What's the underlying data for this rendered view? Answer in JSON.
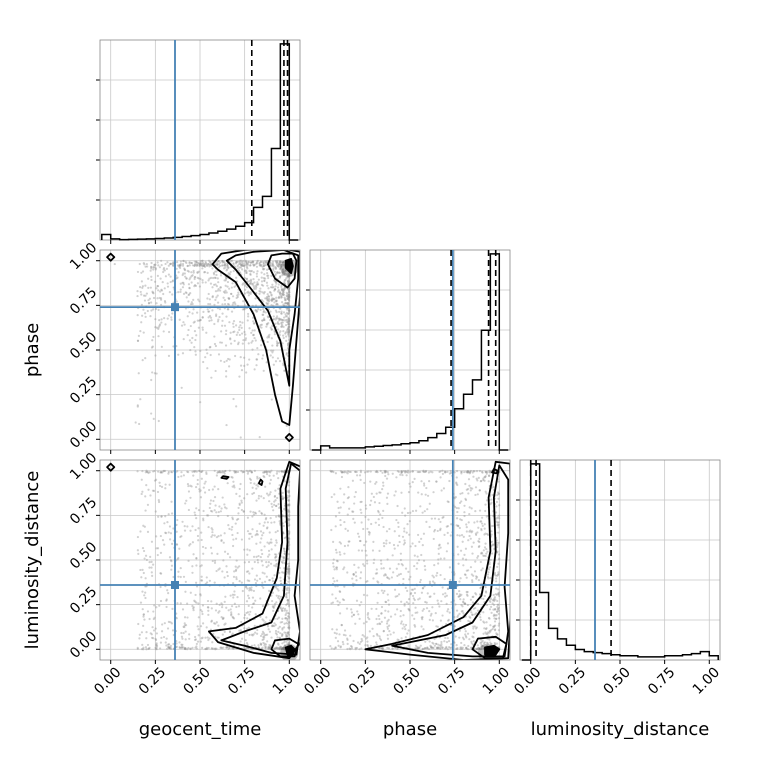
{
  "chart_data": {
    "type": "corner",
    "parameters": [
      "geocent_time",
      "phase",
      "luminosity_distance"
    ],
    "axis_labels": {
      "geocent_time": "geocent_time",
      "phase": "phase",
      "luminosity_distance": "luminosity_distance"
    },
    "ticks": [
      0.0,
      0.25,
      0.5,
      0.75,
      1.0
    ],
    "tick_labels": [
      "0.00",
      "0.25",
      "0.50",
      "0.75",
      "1.00"
    ],
    "ranges": {
      "geocent_time": [
        -0.06,
        1.06
      ],
      "phase": [
        -0.06,
        1.06
      ],
      "luminosity_distance": [
        -0.06,
        1.06
      ]
    },
    "truths": {
      "geocent_time": 0.36,
      "phase": 0.74,
      "luminosity_distance": 0.36
    },
    "colors": {
      "truth": "#4682b4",
      "hist": "#000000",
      "points": "#9a9a9a",
      "grid": "#c8c8c8"
    },
    "grid": true,
    "histograms": {
      "geocent_time": {
        "edges": [
          -0.05,
          0.0,
          0.05,
          0.1,
          0.15,
          0.2,
          0.25,
          0.3,
          0.35,
          0.4,
          0.45,
          0.5,
          0.55,
          0.6,
          0.65,
          0.7,
          0.75,
          0.8,
          0.85,
          0.9,
          0.95,
          1.0,
          1.05
        ],
        "counts": [
          0.025,
          0.005,
          0.002,
          0.003,
          0.004,
          0.005,
          0.007,
          0.009,
          0.012,
          0.016,
          0.02,
          0.025,
          0.032,
          0.04,
          0.05,
          0.063,
          0.08,
          0.15,
          0.2,
          0.42,
          0.9,
          0.0
        ],
        "quantiles": [
          0.79,
          0.97,
          0.99
        ]
      },
      "phase": {
        "edges": [
          -0.05,
          0.0,
          0.05,
          0.1,
          0.15,
          0.2,
          0.25,
          0.3,
          0.35,
          0.4,
          0.45,
          0.5,
          0.55,
          0.6,
          0.65,
          0.7,
          0.75,
          0.8,
          0.85,
          0.9,
          0.95,
          1.0,
          1.05
        ],
        "counts": [
          0.0,
          0.02,
          0.01,
          0.01,
          0.01,
          0.01,
          0.015,
          0.018,
          0.022,
          0.025,
          0.03,
          0.035,
          0.045,
          0.06,
          0.08,
          0.11,
          0.2,
          0.27,
          0.34,
          0.58,
          0.95,
          0.0
        ],
        "quantiles": [
          0.73,
          0.94,
          0.98
        ]
      },
      "luminosity_distance": {
        "edges": [
          -0.05,
          0.0,
          0.05,
          0.1,
          0.15,
          0.2,
          0.25,
          0.3,
          0.35,
          0.4,
          0.45,
          0.5,
          0.55,
          0.6,
          0.65,
          0.7,
          0.75,
          0.8,
          0.85,
          0.9,
          0.95,
          1.0,
          1.05
        ],
        "counts": [
          0.0,
          0.93,
          0.32,
          0.15,
          0.1,
          0.07,
          0.05,
          0.04,
          0.035,
          0.03,
          0.025,
          0.02,
          0.02,
          0.015,
          0.015,
          0.015,
          0.02,
          0.02,
          0.025,
          0.03,
          0.04,
          0.02
        ],
        "quantiles": [
          0.0,
          0.03,
          0.45
        ]
      }
    },
    "panels": [
      {
        "x": "geocent_time",
        "y": "phase",
        "contours": [
          [
            [
              0.99,
              0.95
            ],
            [
              1.01,
              0.93
            ],
            [
              1.02,
              0.97
            ],
            [
              1.01,
              1.01
            ],
            [
              0.98,
              1.0
            ],
            [
              0.98,
              0.96
            ]
          ],
          [
            [
              0.88,
              0.98
            ],
            [
              0.92,
              0.9
            ],
            [
              0.99,
              0.85
            ],
            [
              1.03,
              0.9
            ],
            [
              1.04,
              1.0
            ],
            [
              1.02,
              1.04
            ],
            [
              0.96,
              1.04
            ],
            [
              0.9,
              1.03
            ]
          ],
          [
            [
              0.65,
              1.0
            ],
            [
              0.7,
              0.95
            ],
            [
              0.78,
              0.85
            ],
            [
              0.88,
              0.72
            ],
            [
              0.95,
              0.55
            ],
            [
              1.0,
              0.3
            ],
            [
              1.0,
              0.5
            ],
            [
              1.03,
              0.7
            ],
            [
              1.05,
              0.9
            ],
            [
              1.05,
              1.03
            ],
            [
              0.97,
              1.06
            ],
            [
              0.8,
              1.05
            ],
            [
              0.7,
              1.03
            ]
          ],
          [
            [
              0.57,
              0.98
            ],
            [
              0.6,
              0.95
            ],
            [
              0.7,
              0.88
            ],
            [
              0.8,
              0.7
            ],
            [
              0.87,
              0.5
            ],
            [
              0.92,
              0.25
            ],
            [
              0.96,
              0.1
            ],
            [
              1.0,
              0.08
            ],
            [
              1.02,
              0.3
            ],
            [
              1.04,
              0.55
            ],
            [
              1.06,
              0.8
            ],
            [
              1.06,
              1.05
            ],
            [
              0.95,
              1.07
            ],
            [
              0.75,
              1.06
            ],
            [
              0.62,
              1.04
            ]
          ],
          [
            [
              0.0,
              1.0
            ],
            [
              0.02,
              1.02
            ],
            [
              0.0,
              1.04
            ],
            [
              -0.02,
              1.02
            ]
          ],
          [
            [
              1.0,
              -0.01
            ],
            [
              1.02,
              0.01
            ],
            [
              1.0,
              0.03
            ],
            [
              0.98,
              0.01
            ]
          ]
        ],
        "scatter_seed": 11
      },
      {
        "x": "geocent_time",
        "y": "luminosity_distance",
        "contours": [
          [
            [
              0.99,
              -0.03
            ],
            [
              1.02,
              -0.03
            ],
            [
              1.03,
              0.0
            ],
            [
              1.01,
              0.02
            ],
            [
              0.98,
              0.01
            ]
          ],
          [
            [
              0.9,
              0.0
            ],
            [
              0.95,
              -0.04
            ],
            [
              1.03,
              -0.04
            ],
            [
              1.05,
              0.03
            ],
            [
              1.0,
              0.06
            ],
            [
              0.92,
              0.05
            ]
          ],
          [
            [
              0.62,
              0.05
            ],
            [
              0.75,
              0.02
            ],
            [
              0.9,
              -0.02
            ],
            [
              1.04,
              -0.03
            ],
            [
              1.06,
              0.1
            ],
            [
              1.03,
              0.3
            ],
            [
              1.05,
              0.5
            ],
            [
              1.05,
              0.8
            ],
            [
              1.06,
              1.0
            ],
            [
              1.01,
              1.04
            ],
            [
              0.98,
              0.9
            ],
            [
              0.99,
              0.6
            ],
            [
              0.97,
              0.3
            ],
            [
              0.9,
              0.15
            ],
            [
              0.75,
              0.1
            ]
          ],
          [
            [
              0.55,
              0.1
            ],
            [
              0.6,
              0.04
            ],
            [
              0.8,
              -0.02
            ],
            [
              1.0,
              -0.05
            ],
            [
              1.07,
              0.05
            ],
            [
              1.06,
              0.35
            ],
            [
              1.07,
              0.7
            ],
            [
              1.07,
              1.02
            ],
            [
              1.0,
              1.05
            ],
            [
              0.95,
              0.9
            ],
            [
              0.96,
              0.6
            ],
            [
              0.93,
              0.4
            ],
            [
              0.85,
              0.2
            ],
            [
              0.7,
              0.12
            ]
          ],
          [
            [
              -0.02,
              1.02
            ],
            [
              0.0,
              1.0
            ],
            [
              0.02,
              1.02
            ],
            [
              0.0,
              1.04
            ]
          ],
          [
            [
              0.62,
              0.96
            ],
            [
              0.65,
              0.955
            ],
            [
              0.66,
              0.965
            ],
            [
              0.63,
              0.97
            ]
          ],
          [
            [
              0.83,
              0.93
            ],
            [
              0.845,
              0.92
            ],
            [
              0.85,
              0.94
            ],
            [
              0.84,
              0.95
            ]
          ]
        ],
        "scatter_seed": 23
      },
      {
        "x": "phase",
        "y": "luminosity_distance",
        "contours": [
          [
            [
              0.92,
              -0.03
            ],
            [
              0.98,
              -0.03
            ],
            [
              1.0,
              0.0
            ],
            [
              0.97,
              0.02
            ],
            [
              0.92,
              0.01
            ]
          ],
          [
            [
              0.85,
              0.0
            ],
            [
              0.92,
              -0.05
            ],
            [
              1.02,
              -0.05
            ],
            [
              1.04,
              0.03
            ],
            [
              0.98,
              0.07
            ],
            [
              0.88,
              0.06
            ]
          ],
          [
            [
              0.4,
              0.02
            ],
            [
              0.6,
              -0.02
            ],
            [
              0.85,
              -0.04
            ],
            [
              1.03,
              -0.04
            ],
            [
              1.05,
              0.1
            ],
            [
              1.03,
              0.35
            ],
            [
              1.05,
              0.65
            ],
            [
              1.05,
              0.95
            ],
            [
              1.0,
              1.03
            ],
            [
              0.97,
              0.85
            ],
            [
              0.98,
              0.55
            ],
            [
              0.95,
              0.3
            ],
            [
              0.85,
              0.15
            ],
            [
              0.7,
              0.08
            ],
            [
              0.55,
              0.05
            ]
          ],
          [
            [
              0.25,
              0.0
            ],
            [
              0.5,
              -0.03
            ],
            [
              0.8,
              -0.06
            ],
            [
              1.05,
              -0.05
            ],
            [
              1.07,
              0.3
            ],
            [
              1.07,
              0.7
            ],
            [
              1.06,
              1.04
            ],
            [
              0.98,
              1.05
            ],
            [
              0.94,
              0.85
            ],
            [
              0.95,
              0.55
            ],
            [
              0.9,
              0.3
            ],
            [
              0.8,
              0.18
            ],
            [
              0.6,
              0.08
            ],
            [
              0.4,
              0.03
            ]
          ],
          [
            [
              0.96,
              0.99
            ],
            [
              0.985,
              0.985
            ],
            [
              0.99,
              1.0
            ],
            [
              0.97,
              1.01
            ]
          ]
        ],
        "scatter_seed": 37
      }
    ]
  }
}
